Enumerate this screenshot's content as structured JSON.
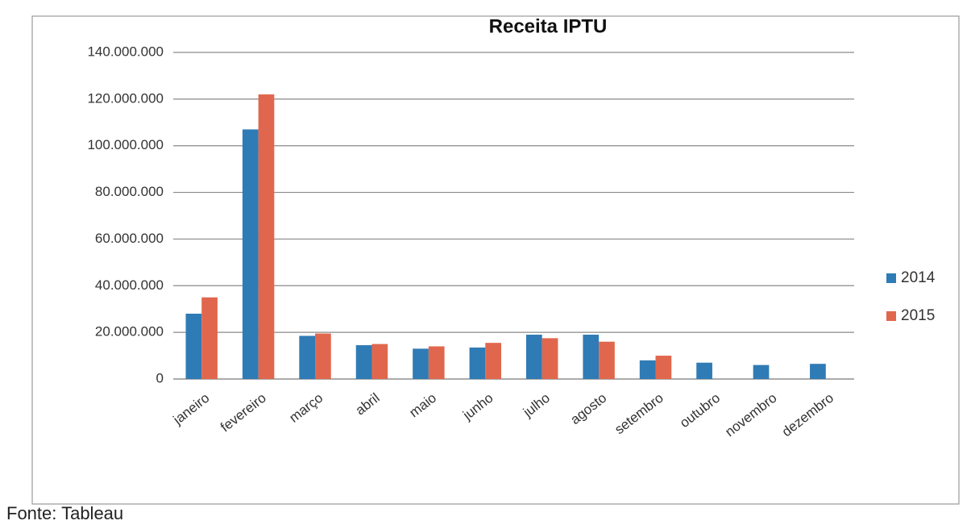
{
  "chart_data": {
    "type": "bar",
    "title": "Receita IPTU",
    "categories": [
      "janeiro",
      "fevereiro",
      "março",
      "abril",
      "maio",
      "junho",
      "julho",
      "agosto",
      "setembro",
      "outubro",
      "novembro",
      "dezembro"
    ],
    "series": [
      {
        "name": "2014",
        "color": "#2f7bb5",
        "values": [
          28000000,
          107000000,
          18500000,
          14500000,
          13000000,
          13500000,
          19000000,
          19000000,
          8000000,
          7000000,
          6000000,
          6500000
        ]
      },
      {
        "name": "2015",
        "color": "#e0674d",
        "values": [
          35000000,
          122000000,
          19500000,
          15000000,
          14000000,
          15500000,
          17500000,
          16000000,
          10000000,
          null,
          null,
          null
        ]
      }
    ],
    "ylim": [
      0,
      140000000
    ],
    "yticks": [
      0,
      {
        "value": 20000000,
        "label": "20.000.000"
      },
      {
        "value": 40000000,
        "label": "40.000.000"
      },
      {
        "value": 60000000,
        "label": "60.000.000"
      },
      {
        "value": 80000000,
        "label": "80.000.000"
      },
      {
        "value": 100000000,
        "label": "100.000.000"
      },
      {
        "value": 120000000,
        "label": "120.000.000"
      },
      {
        "value": 140000000,
        "label": "140.000.000"
      }
    ],
    "grid": true,
    "legend": "right",
    "source": "Fonte: Tableau"
  }
}
